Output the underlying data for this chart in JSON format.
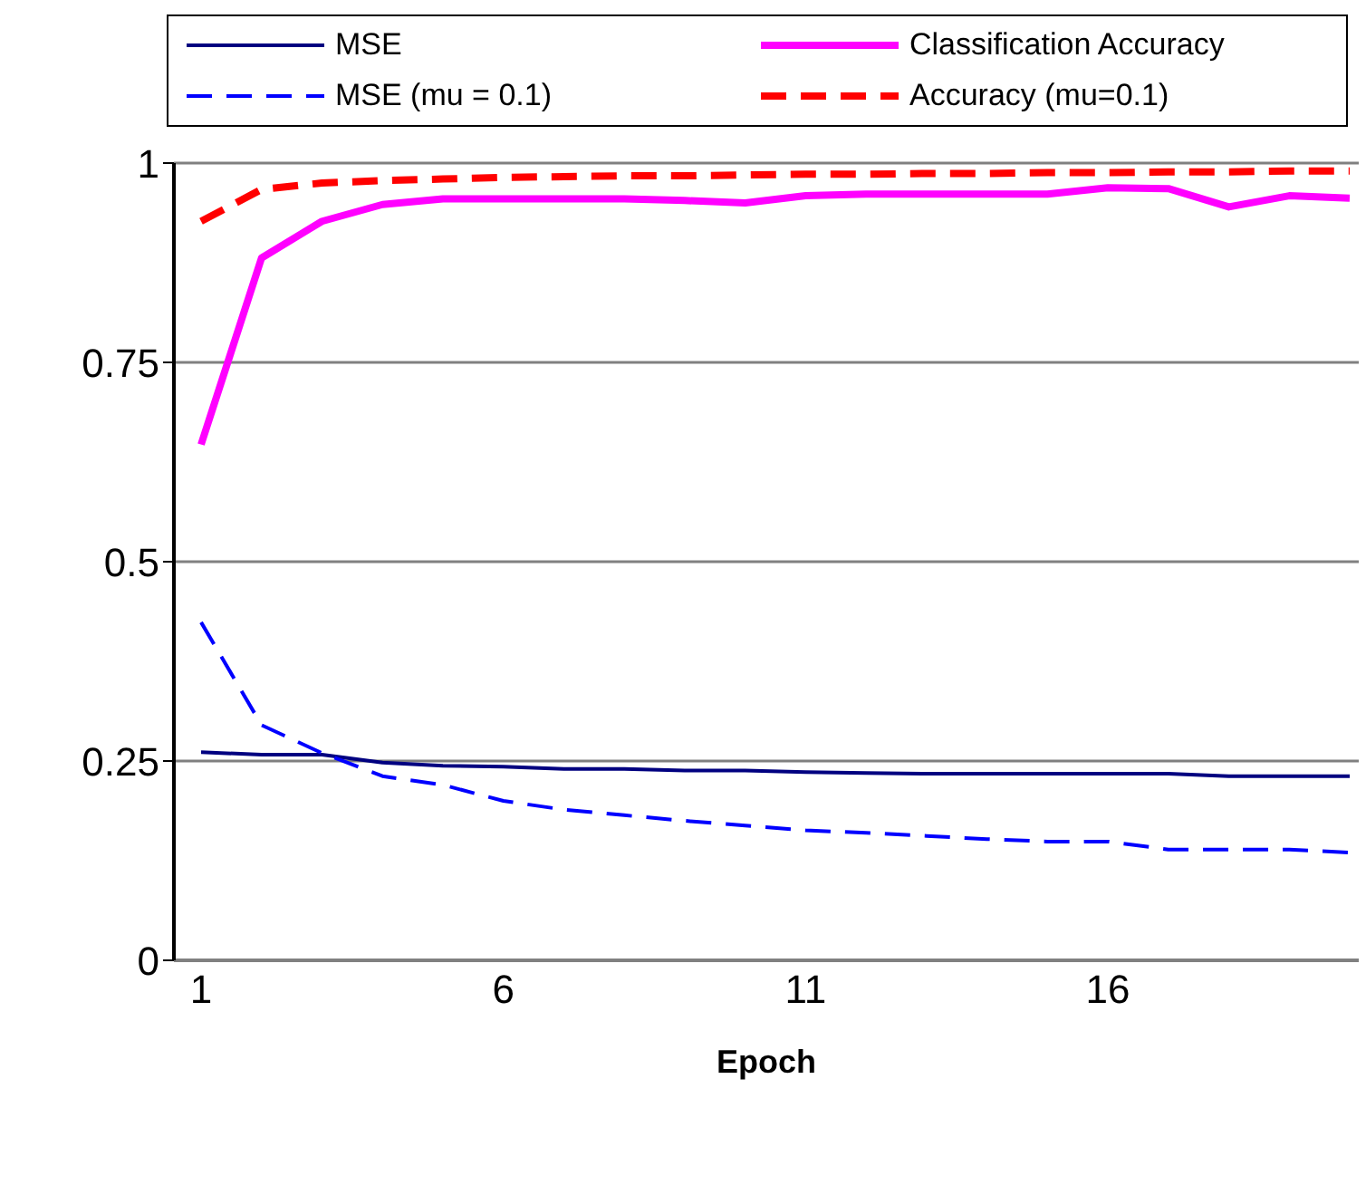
{
  "chart_data": {
    "type": "line",
    "xlabel": "Epoch",
    "categories": [
      "1",
      null,
      null,
      null,
      null,
      "6",
      null,
      null,
      null,
      null,
      "11",
      null,
      null,
      null,
      null,
      "16",
      null,
      null,
      null,
      null
    ],
    "series": [
      {
        "name": "MSE",
        "color": "#000080",
        "line_style": "solid",
        "values": [
          0.261,
          0.258,
          0.258,
          0.248,
          0.244,
          0.243,
          0.24,
          0.24,
          0.238,
          0.238,
          0.236,
          0.235,
          0.234,
          0.234,
          0.234,
          0.234,
          0.234,
          0.231,
          0.231,
          0.231
        ]
      },
      {
        "name": "Classification Accuracy",
        "color": "#ff00ff",
        "line_style": "solid",
        "values": [
          0.647,
          0.881,
          0.927,
          0.948,
          0.955,
          0.955,
          0.955,
          0.955,
          0.953,
          0.95,
          0.959,
          0.961,
          0.961,
          0.961,
          0.961,
          0.969,
          0.968,
          0.945,
          0.959,
          0.956
        ]
      },
      {
        "name": "MSE (mu = 0.1)",
        "color": "#0000ff",
        "line_style": "dashed",
        "values": [
          0.424,
          0.295,
          0.26,
          0.231,
          0.22,
          0.2,
          0.189,
          0.182,
          0.175,
          0.169,
          0.163,
          0.16,
          0.156,
          0.152,
          0.149,
          0.149,
          0.139,
          0.139,
          0.139,
          0.135
        ]
      },
      {
        "name": "Accuracy (mu=0.1)",
        "color": "#ff0000",
        "line_style": "dashed",
        "values": [
          0.927,
          0.967,
          0.975,
          0.978,
          0.98,
          0.982,
          0.983,
          0.984,
          0.984,
          0.985,
          0.986,
          0.986,
          0.987,
          0.987,
          0.988,
          0.988,
          0.989,
          0.989,
          0.99,
          0.99
        ]
      }
    ],
    "ylim": [
      0,
      1
    ],
    "yticks": [
      0,
      0.25,
      0.5,
      0.75,
      1
    ],
    "grid": "y",
    "legend": "top",
    "marker": "none"
  }
}
